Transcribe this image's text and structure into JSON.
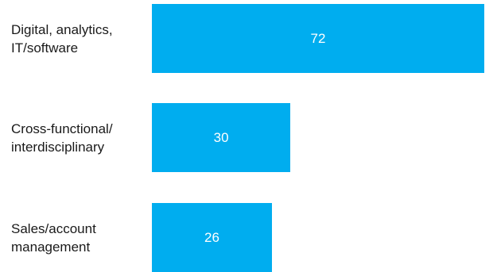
{
  "chart_data": {
    "type": "bar",
    "orientation": "horizontal",
    "categories": [
      "Digital, analytics,\nIT/software",
      "Cross-functional/\ninterdisciplinary",
      "Sales/account\nmanagement"
    ],
    "values": [
      72,
      30,
      26
    ],
    "data_labels": [
      "72",
      "30",
      "26"
    ],
    "bar_color": "#00adef",
    "value_label_color": "#ffffff",
    "title": "",
    "xlabel": "",
    "ylabel": "",
    "xlim": [
      0,
      72
    ],
    "grid": false,
    "legend": false
  }
}
